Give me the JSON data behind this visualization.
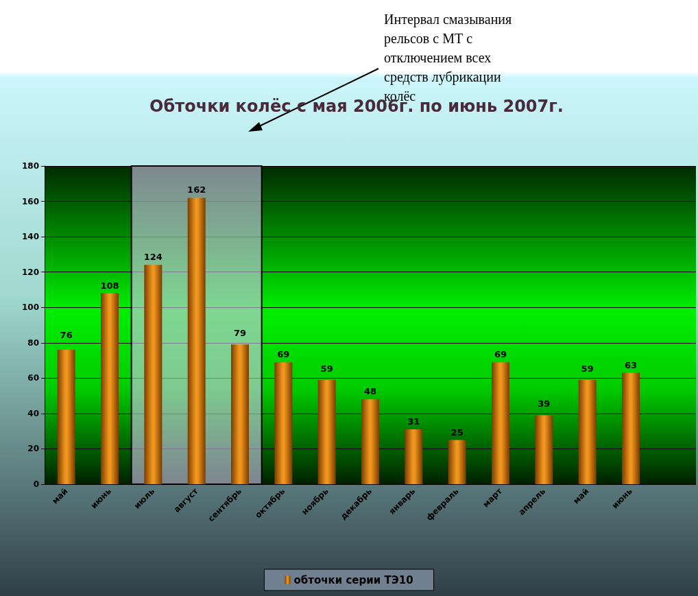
{
  "chart_data": {
    "type": "bar",
    "title": "Обточки колёс с мая 2006г. по июнь 2007г.",
    "categories": [
      "май",
      "июнь",
      "июль",
      "август",
      "сентябрь",
      "октябрь",
      "ноябрь",
      "декабрь",
      "январь",
      "февраль",
      "март",
      "апрель",
      "май",
      "июнь",
      null
    ],
    "series": [
      {
        "name": "обточки серии ТЭ10",
        "color": "#f0961e",
        "values": [
          76,
          108,
          124,
          162,
          79,
          69,
          59,
          48,
          31,
          25,
          69,
          39,
          59,
          63,
          null
        ]
      }
    ],
    "ylim": [
      0,
      180
    ],
    "yticks": [
      0,
      20,
      40,
      60,
      80,
      100,
      120,
      140,
      160,
      180
    ],
    "grid": "y",
    "legend": "bottom",
    "data_labels": true,
    "bands": [
      {
        "axis": "x",
        "from": "июль",
        "to": "сентябрь",
        "label": "Интервал смазывания рельсов с МТ с отключением всех средств лубрикации колёс",
        "color": "#d2c8f0"
      }
    ]
  }
}
